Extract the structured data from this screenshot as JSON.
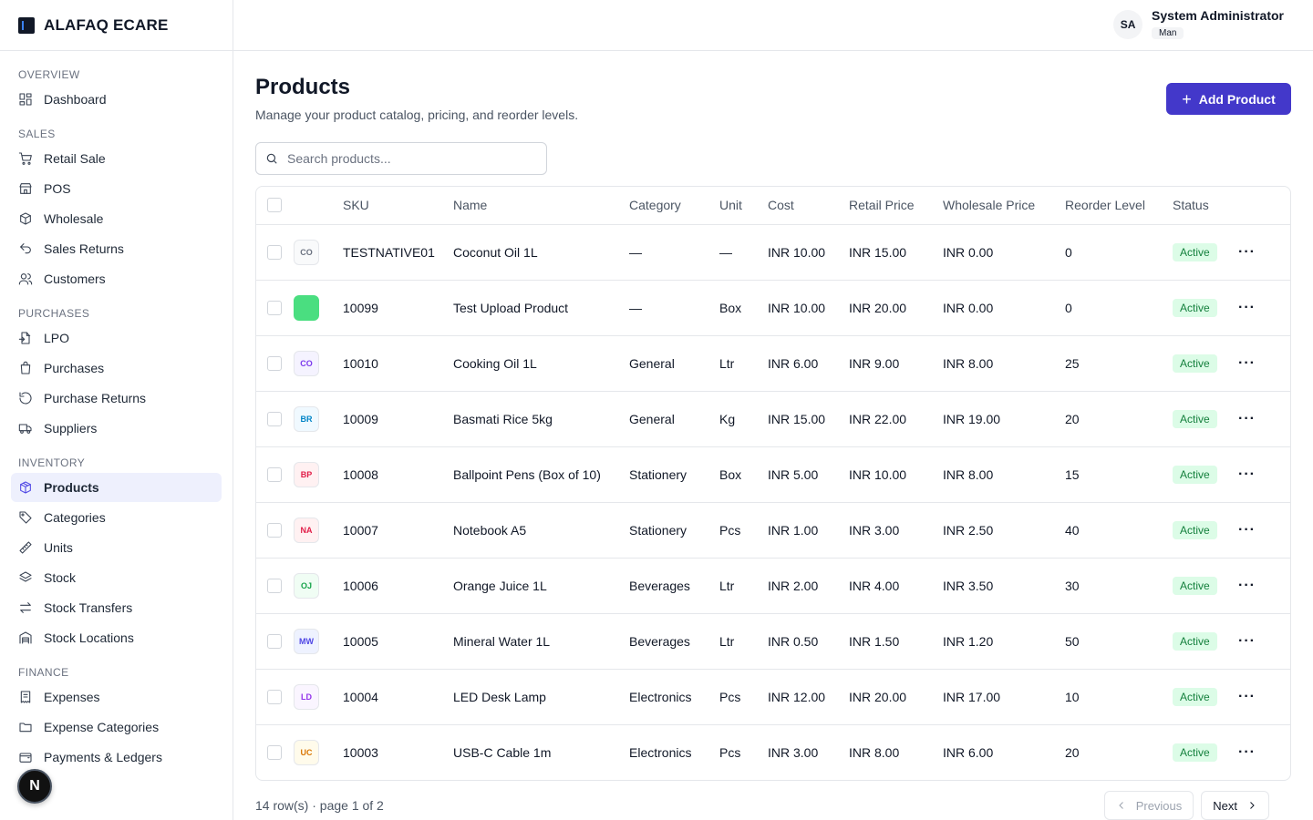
{
  "brand": {
    "name": "ALAFAQ ECARE"
  },
  "user": {
    "initials": "SA",
    "name": "System Administrator",
    "role": "Man"
  },
  "sidebar": {
    "sections": [
      {
        "label": "OVERVIEW",
        "items": [
          {
            "label": "Dashboard",
            "icon": "dashboard-icon"
          }
        ]
      },
      {
        "label": "SALES",
        "items": [
          {
            "label": "Retail Sale",
            "icon": "cart-icon"
          },
          {
            "label": "POS",
            "icon": "store-icon"
          },
          {
            "label": "Wholesale",
            "icon": "boxes-icon"
          },
          {
            "label": "Sales Returns",
            "icon": "undo-icon"
          },
          {
            "label": "Customers",
            "icon": "users-icon"
          }
        ]
      },
      {
        "label": "PURCHASES",
        "items": [
          {
            "label": "LPO",
            "icon": "file-in-icon"
          },
          {
            "label": "Purchases",
            "icon": "bag-icon"
          },
          {
            "label": "Purchase Returns",
            "icon": "rotate-icon"
          },
          {
            "label": "Suppliers",
            "icon": "truck-icon"
          }
        ]
      },
      {
        "label": "INVENTORY",
        "items": [
          {
            "label": "Products",
            "icon": "package-icon",
            "active": true
          },
          {
            "label": "Categories",
            "icon": "tag-icon"
          },
          {
            "label": "Units",
            "icon": "ruler-icon"
          },
          {
            "label": "Stock",
            "icon": "layers-icon"
          },
          {
            "label": "Stock Transfers",
            "icon": "transfer-icon"
          },
          {
            "label": "Stock Locations",
            "icon": "warehouse-icon"
          }
        ]
      },
      {
        "label": "FINANCE",
        "items": [
          {
            "label": "Expenses",
            "icon": "receipt-icon"
          },
          {
            "label": "Expense Categories",
            "icon": "folder-icon"
          },
          {
            "label": "Payments & Ledgers",
            "icon": "wallet-icon"
          }
        ]
      }
    ]
  },
  "fab": {
    "label": "N"
  },
  "page": {
    "title": "Products",
    "subtitle": "Manage your product catalog, pricing, and reorder levels.",
    "add_button": "Add Product",
    "search_placeholder": "Search products..."
  },
  "table": {
    "columns": [
      "SKU",
      "Name",
      "Category",
      "Unit",
      "Cost",
      "Retail Price",
      "Wholesale Price",
      "Reorder Level",
      "Status"
    ],
    "rows": [
      {
        "thumb": "CO",
        "thumb_color": "#6b7280",
        "thumb_bg": "#f9fafb",
        "sku": "TESTNATIVE01",
        "name": "Coconut Oil 1L",
        "category": "—",
        "unit": "—",
        "cost": "INR 10.00",
        "retail": "INR 15.00",
        "wholesale": "INR 0.00",
        "reorder": "0",
        "status": "Active"
      },
      {
        "thumb": "",
        "thumb_color": "#22c55e",
        "thumb_bg": "#4ade80",
        "sku": "10099",
        "name": "Test Upload Product",
        "category": "—",
        "unit": "Box",
        "cost": "INR 10.00",
        "retail": "INR 20.00",
        "wholesale": "INR 0.00",
        "reorder": "0",
        "status": "Active"
      },
      {
        "thumb": "CO",
        "thumb_color": "#7c3aed",
        "thumb_bg": "#f5f3ff",
        "sku": "10010",
        "name": "Cooking Oil 1L",
        "category": "General",
        "unit": "Ltr",
        "cost": "INR 6.00",
        "retail": "INR 9.00",
        "wholesale": "INR 8.00",
        "reorder": "25",
        "status": "Active"
      },
      {
        "thumb": "BR",
        "thumb_color": "#0284c7",
        "thumb_bg": "#f0f9ff",
        "sku": "10009",
        "name": "Basmati Rice 5kg",
        "category": "General",
        "unit": "Kg",
        "cost": "INR 15.00",
        "retail": "INR 22.00",
        "wholesale": "INR 19.00",
        "reorder": "20",
        "status": "Active"
      },
      {
        "thumb": "BP",
        "thumb_color": "#e11d48",
        "thumb_bg": "#fff1f2",
        "sku": "10008",
        "name": "Ballpoint Pens (Box of 10)",
        "category": "Stationery",
        "unit": "Box",
        "cost": "INR 5.00",
        "retail": "INR 10.00",
        "wholesale": "INR 8.00",
        "reorder": "15",
        "status": "Active"
      },
      {
        "thumb": "NA",
        "thumb_color": "#e11d48",
        "thumb_bg": "#fff1f2",
        "sku": "10007",
        "name": "Notebook A5",
        "category": "Stationery",
        "unit": "Pcs",
        "cost": "INR 1.00",
        "retail": "INR 3.00",
        "wholesale": "INR 2.50",
        "reorder": "40",
        "status": "Active"
      },
      {
        "thumb": "OJ",
        "thumb_color": "#16a34a",
        "thumb_bg": "#f0fdf4",
        "sku": "10006",
        "name": "Orange Juice 1L",
        "category": "Beverages",
        "unit": "Ltr",
        "cost": "INR 2.00",
        "retail": "INR 4.00",
        "wholesale": "INR 3.50",
        "reorder": "30",
        "status": "Active"
      },
      {
        "thumb": "MW",
        "thumb_color": "#4f46e5",
        "thumb_bg": "#eef2ff",
        "sku": "10005",
        "name": "Mineral Water 1L",
        "category": "Beverages",
        "unit": "Ltr",
        "cost": "INR 0.50",
        "retail": "INR 1.50",
        "wholesale": "INR 1.20",
        "reorder": "50",
        "status": "Active"
      },
      {
        "thumb": "LD",
        "thumb_color": "#9333ea",
        "thumb_bg": "#faf5ff",
        "sku": "10004",
        "name": "LED Desk Lamp",
        "category": "Electronics",
        "unit": "Pcs",
        "cost": "INR 12.00",
        "retail": "INR 20.00",
        "wholesale": "INR 17.00",
        "reorder": "10",
        "status": "Active"
      },
      {
        "thumb": "UC",
        "thumb_color": "#d97706",
        "thumb_bg": "#fffbeb",
        "sku": "10003",
        "name": "USB-C Cable 1m",
        "category": "Electronics",
        "unit": "Pcs",
        "cost": "INR 3.00",
        "retail": "INR 8.00",
        "wholesale": "INR 6.00",
        "reorder": "20",
        "status": "Active"
      }
    ]
  },
  "footer": {
    "summary": "14 row(s) · page 1 of 2",
    "previous": "Previous",
    "next": "Next"
  },
  "colors": {
    "accent": "#4338ca",
    "active_nav_bg": "#eef0fd",
    "status_bg": "#dcfce7",
    "status_text": "#15803d"
  }
}
